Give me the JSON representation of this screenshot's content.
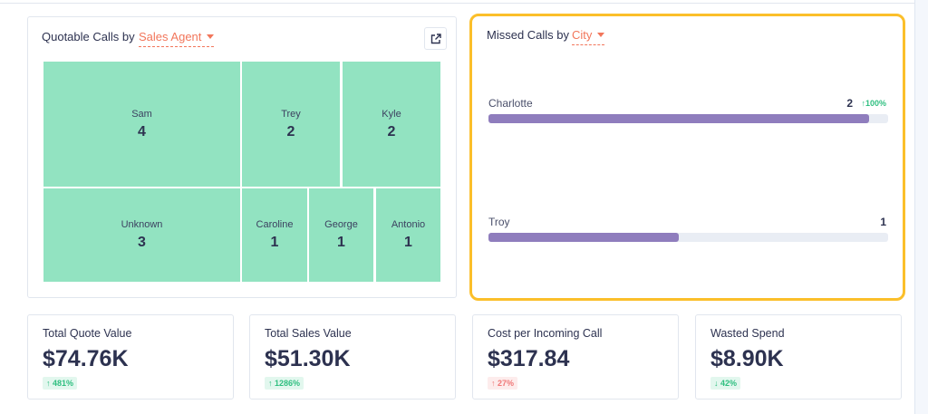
{
  "quotable": {
    "title": "Quotable Calls by",
    "dimension": "Sales Agent",
    "icon": "external-link-icon",
    "tiles": [
      {
        "name": "Sam",
        "value": 4
      },
      {
        "name": "Trey",
        "value": 2
      },
      {
        "name": "Kyle",
        "value": 2
      },
      {
        "name": "Unknown",
        "value": 3
      },
      {
        "name": "Caroline",
        "value": 1
      },
      {
        "name": "George",
        "value": 1
      },
      {
        "name": "Antonio",
        "value": 1
      }
    ]
  },
  "missed": {
    "title": "Missed Calls by",
    "dimension": "City",
    "max": 2.1,
    "rows": [
      {
        "name": "Charlotte",
        "value": 2,
        "change": "100%"
      },
      {
        "name": "Troy",
        "value": 1,
        "change": ""
      }
    ]
  },
  "kpis": [
    {
      "title": "Total Quote Value",
      "value": "$74.76K",
      "change": "481%",
      "dir": "↑",
      "tone": "up-good"
    },
    {
      "title": "Total Sales Value",
      "value": "$51.30K",
      "change": "1286%",
      "dir": "↑",
      "tone": "up-good"
    },
    {
      "title": "Cost per Incoming Call",
      "value": "$317.84",
      "change": "27%",
      "dir": "↑",
      "tone": "up-bad"
    },
    {
      "title": "Wasted Spend",
      "value": "$8.90K",
      "change": "42%",
      "dir": "↓",
      "tone": "up-good"
    }
  ],
  "colors": {
    "highlight": "#fbbf2a",
    "treemap": "#92e3c1",
    "bar": "#8f7dbd",
    "accent": "#f2765b"
  }
}
